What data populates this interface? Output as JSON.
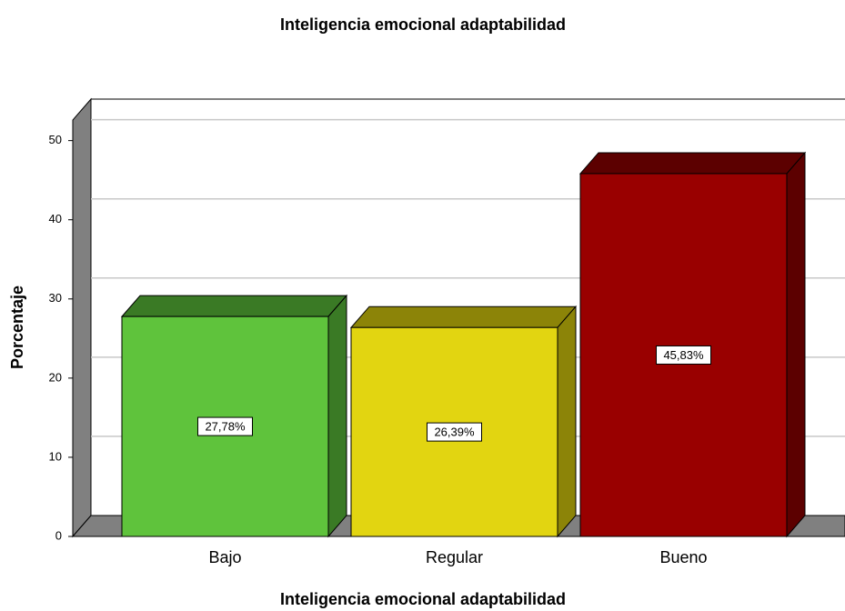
{
  "chart_data": {
    "type": "bar3d",
    "title": "Inteligencia emocional adaptabilidad",
    "x_label": "Inteligencia emocional adaptabilidad",
    "y_label": "Porcentaje",
    "categories": [
      "Bajo",
      "Regular",
      "Bueno"
    ],
    "values": [
      27.78,
      26.39,
      45.83
    ],
    "value_labels": [
      "27,78%",
      "26,39%",
      "45,83%"
    ],
    "colors": [
      "#5fc33c",
      "#e2d511",
      "#990000"
    ],
    "side_colors": [
      "#3a7a25",
      "#8c8408",
      "#5c0000"
    ],
    "ylim": [
      0,
      52.6
    ],
    "yticks": [
      0,
      10,
      20,
      30,
      40,
      50
    ],
    "grid": true
  }
}
